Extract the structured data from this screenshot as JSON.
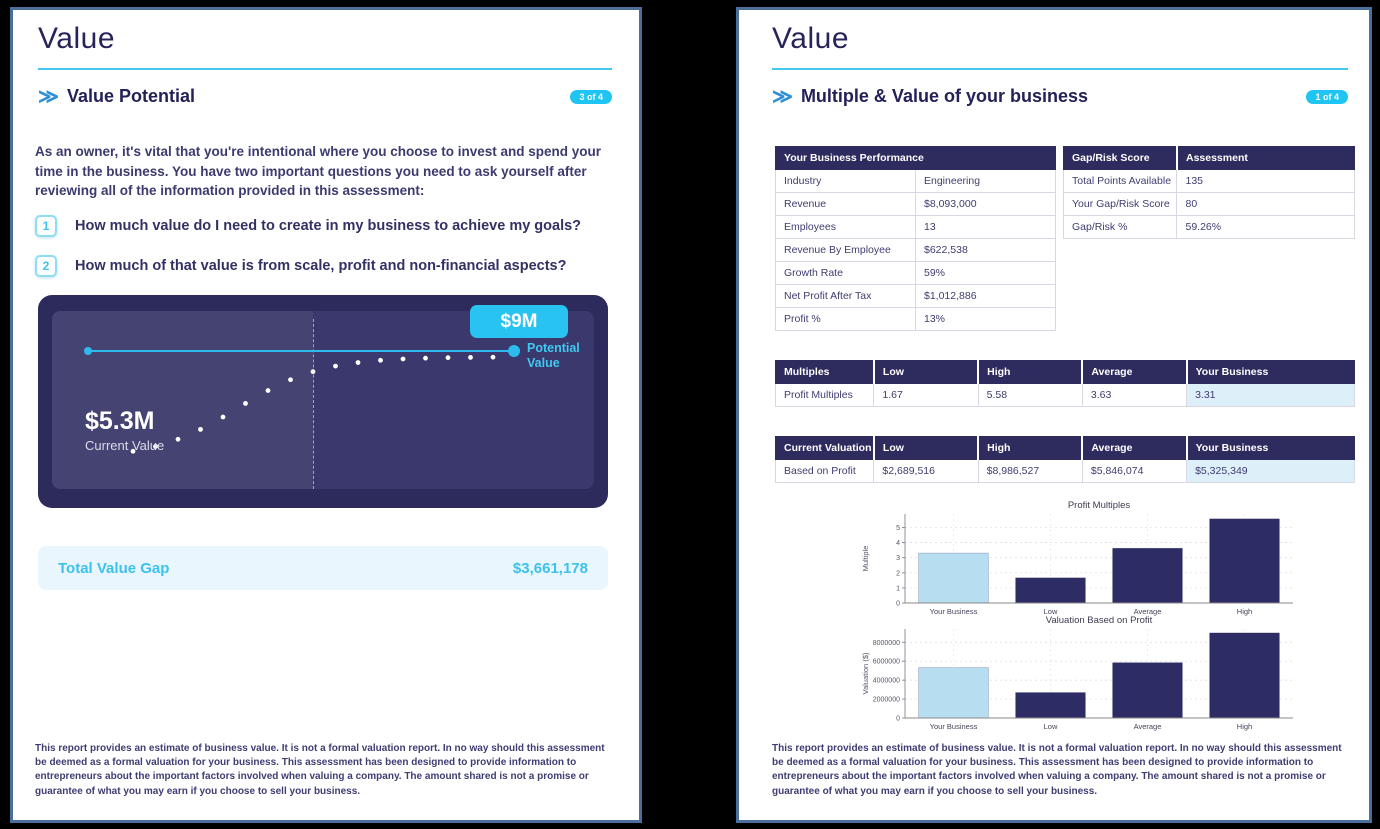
{
  "colors": {
    "accent_cyan": "#2fc5f0",
    "navy": "#2e2c64",
    "light_blue_bar": "#b7ddf0",
    "highlight_cell": "#ddeff8",
    "page_border": "#4b6f9d",
    "card_bg": "#2d2b5c"
  },
  "pages": {
    "left": {
      "title": "Value",
      "section": {
        "heading": "Value Potential",
        "badge": "3 of 4"
      },
      "intro": "As an owner, it's vital that you're intentional where you choose to invest and spend your time in the business. You have two important questions you need to ask yourself after reviewing all of the information provided in this assessment:",
      "questions": [
        {
          "num": "1",
          "text": "How much value do I need to create in my business to achieve my goals?"
        },
        {
          "num": "2",
          "text": "How much of that value is from scale, profit and non-financial aspects?"
        }
      ],
      "value_chart": {
        "potential_value": "$9M",
        "potential_label": "Potential Value",
        "current_value": "$5.3M",
        "current_label": "Current Value"
      },
      "total_gap": {
        "label": "Total Value Gap",
        "value": "$3,661,178"
      },
      "disclaimer": "This report provides an estimate of business value. It is not a formal valuation report. In no way should this assessment be deemed as a formal valuation for your business. This assessment has been designed to provide information to entrepreneurs about the important factors involved when valuing a company. The amount shared is not a promise or guarantee of what you may earn if you choose to sell your business."
    },
    "right": {
      "title": "Value",
      "section": {
        "heading": "Multiple & Value of your business",
        "badge": "1 of 4"
      },
      "tables": {
        "performance": {
          "header": "Your Business Performance",
          "rows": [
            [
              "Industry",
              "Engineering"
            ],
            [
              "Revenue",
              "$8,093,000"
            ],
            [
              "Employees",
              "13"
            ],
            [
              "Revenue By Employee",
              "$622,538"
            ],
            [
              "Growth Rate",
              "59%"
            ],
            [
              "Net Profit After Tax",
              "$1,012,886"
            ],
            [
              "Profit %",
              "13%"
            ]
          ]
        },
        "gap_risk": {
          "headers": [
            "Gap/Risk Score",
            "Assessment"
          ],
          "rows": [
            [
              "Total Points Available",
              "135"
            ],
            [
              "Your Gap/Risk Score",
              "80"
            ],
            [
              "Gap/Risk %",
              "59.26%"
            ]
          ]
        },
        "multiples": {
          "headers": [
            "Multiples",
            "Low",
            "High",
            "Average",
            "Your Business"
          ],
          "rows": [
            [
              "Profit Multiples",
              "1.67",
              "5.58",
              "3.63",
              "3.31"
            ]
          ]
        },
        "valuation": {
          "headers": [
            "Current Valuation",
            "Low",
            "High",
            "Average",
            "Your Business"
          ],
          "rows": [
            [
              "Based on Profit",
              "$2,689,516",
              "$8,986,527",
              "$5,846,074",
              "$5,325,349"
            ]
          ]
        }
      },
      "disclaimer": "This report provides an estimate of business value. It is not a formal valuation report. In no way should this assessment be deemed as a formal valuation for your business. This assessment has been designed to provide information to entrepreneurs about the important factors involved when valuing a company. The amount shared is not a promise or guarantee of what you may earn if you choose to sell your business."
    }
  },
  "chart_data": [
    {
      "type": "bar",
      "title": "Profit Multiples",
      "categories": [
        "Your Business",
        "Low",
        "Average",
        "High"
      ],
      "values": [
        3.31,
        1.67,
        3.63,
        5.58
      ],
      "xlabel": "",
      "ylabel": "Multiple",
      "yticks": [
        0,
        1,
        2,
        3,
        4,
        5
      ],
      "ylim": [
        0,
        5.9
      ],
      "grid": true,
      "legend": false,
      "bar_colors": [
        "#b7ddf0",
        "#2e2c64",
        "#2e2c64",
        "#2e2c64"
      ]
    },
    {
      "type": "bar",
      "title": "Valuation Based on Profit",
      "categories": [
        "Your Business",
        "Low",
        "Average",
        "High"
      ],
      "values": [
        5325349,
        2689516,
        5846074,
        8986527
      ],
      "xlabel": "",
      "ylabel": "Valuation ($)",
      "yticks": [
        0,
        2000000,
        4000000,
        6000000,
        8000000
      ],
      "ylim": [
        0,
        9400000
      ],
      "grid": true,
      "legend": false,
      "bar_colors": [
        "#b7ddf0",
        "#2e2c64",
        "#2e2c64",
        "#2e2c64"
      ]
    },
    {
      "type": "line",
      "title": "Value Potential growth curve",
      "description": "Dotted S-curve rising from current value to potential value line",
      "current_value_label": "$5.3M",
      "potential_value_label": "$9M"
    }
  ]
}
